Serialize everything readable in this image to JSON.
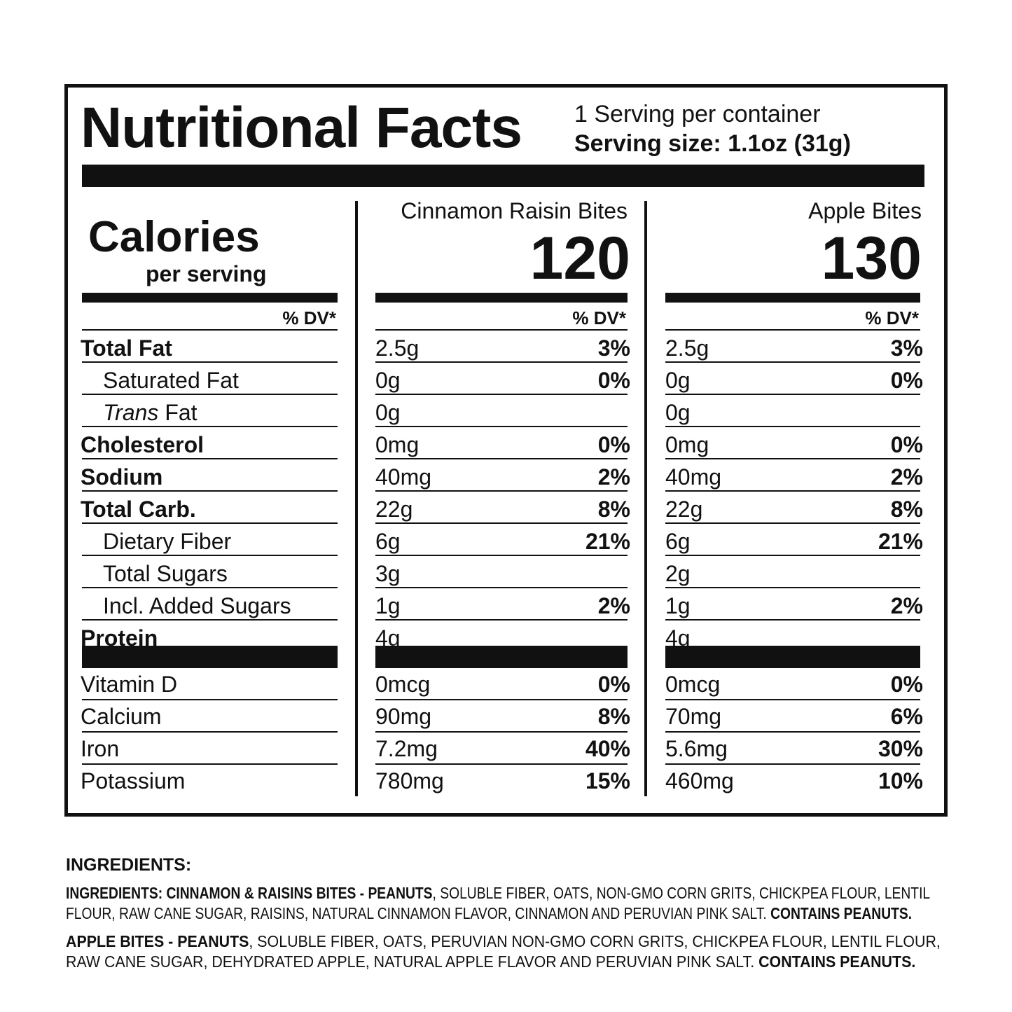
{
  "header": {
    "title": "Nutritional Facts",
    "servings_per_container": "1 Serving per container",
    "serving_size": "Serving size: 1.1oz (31g)"
  },
  "calories": {
    "label": "Calories",
    "sublabel": "per serving"
  },
  "dv_header": "% DV*",
  "products": [
    {
      "name": "Cinnamon Raisin Bites",
      "calories": "120"
    },
    {
      "name": "Apple Bites",
      "calories": "130"
    }
  ],
  "nutrients": [
    {
      "label": "Total Fat",
      "bold": true,
      "indent": false,
      "italic_prefix": "",
      "values": [
        {
          "amount": "2.5g",
          "dv": "3%"
        },
        {
          "amount": "2.5g",
          "dv": "3%"
        }
      ]
    },
    {
      "label": "Saturated Fat",
      "bold": false,
      "indent": true,
      "italic_prefix": "",
      "values": [
        {
          "amount": "0g",
          "dv": "0%"
        },
        {
          "amount": "0g",
          "dv": "0%"
        }
      ]
    },
    {
      "label": " Fat",
      "bold": false,
      "indent": true,
      "italic_prefix": "Trans",
      "values": [
        {
          "amount": "0g",
          "dv": ""
        },
        {
          "amount": "0g",
          "dv": ""
        }
      ]
    },
    {
      "label": "Cholesterol",
      "bold": true,
      "indent": false,
      "italic_prefix": "",
      "values": [
        {
          "amount": "0mg",
          "dv": "0%"
        },
        {
          "amount": "0mg",
          "dv": "0%"
        }
      ]
    },
    {
      "label": "Sodium",
      "bold": true,
      "indent": false,
      "italic_prefix": "",
      "values": [
        {
          "amount": "40mg",
          "dv": "2%"
        },
        {
          "amount": "40mg",
          "dv": "2%"
        }
      ]
    },
    {
      "label": "Total Carb.",
      "bold": true,
      "indent": false,
      "italic_prefix": "",
      "values": [
        {
          "amount": "22g",
          "dv": "8%"
        },
        {
          "amount": "22g",
          "dv": "8%"
        }
      ]
    },
    {
      "label": "Dietary Fiber",
      "bold": false,
      "indent": true,
      "italic_prefix": "",
      "values": [
        {
          "amount": "6g",
          "dv": "21%"
        },
        {
          "amount": "6g",
          "dv": "21%"
        }
      ]
    },
    {
      "label": "Total Sugars",
      "bold": false,
      "indent": true,
      "italic_prefix": "",
      "values": [
        {
          "amount": "3g",
          "dv": ""
        },
        {
          "amount": "2g",
          "dv": ""
        }
      ]
    },
    {
      "label": "Incl. Added Sugars",
      "bold": false,
      "indent": true,
      "italic_prefix": "",
      "values": [
        {
          "amount": "1g",
          "dv": "2%"
        },
        {
          "amount": "1g",
          "dv": "2%"
        }
      ]
    },
    {
      "label": "Protein",
      "bold": true,
      "indent": false,
      "italic_prefix": "",
      "values": [
        {
          "amount": "4g",
          "dv": ""
        },
        {
          "amount": "4g",
          "dv": ""
        }
      ]
    }
  ],
  "vitamins": [
    {
      "label": "Vitamin D",
      "values": [
        {
          "amount": "0mcg",
          "dv": "0%"
        },
        {
          "amount": "0mcg",
          "dv": "0%"
        }
      ]
    },
    {
      "label": "Calcium",
      "values": [
        {
          "amount": "90mg",
          "dv": "8%"
        },
        {
          "amount": "70mg",
          "dv": "6%"
        }
      ]
    },
    {
      "label": "Iron",
      "values": [
        {
          "amount": "7.2mg",
          "dv": "40%"
        },
        {
          "amount": "5.6mg",
          "dv": "30%"
        }
      ]
    },
    {
      "label": "Potassium",
      "values": [
        {
          "amount": "780mg",
          "dv": "15%"
        },
        {
          "amount": "460mg",
          "dv": "10%"
        }
      ]
    }
  ],
  "ingredients": {
    "heading": "INGREDIENTS:",
    "cinnamon": {
      "lead": "INGREDIENTS: CINNAMON & RAISINS BITES - PEANUTS",
      "body": ", SOLUBLE FIBER, OATS, NON-GMO CORN GRITS, CHICKPEA FLOUR, LENTIL FLOUR, RAW CANE SUGAR, RAISINS, NATURAL CINNAMON FLAVOR, CINNAMON AND PERUVIAN PINK SALT. ",
      "allergen": "CONTAINS PEANUTS."
    },
    "apple": {
      "lead": "APPLE BITES - PEANUTS",
      "body": ", SOLUBLE FIBER, OATS, PERUVIAN NON-GMO CORN GRITS, CHICKPEA FLOUR, LENTIL FLOUR, RAW CANE SUGAR, DEHYDRATED APPLE, NATURAL APPLE FLAVOR AND PERUVIAN PINK SALT. ",
      "allergen": "CONTAINS PEANUTS."
    }
  },
  "colors": {
    "ink": "#111111",
    "background": "#ffffff"
  }
}
